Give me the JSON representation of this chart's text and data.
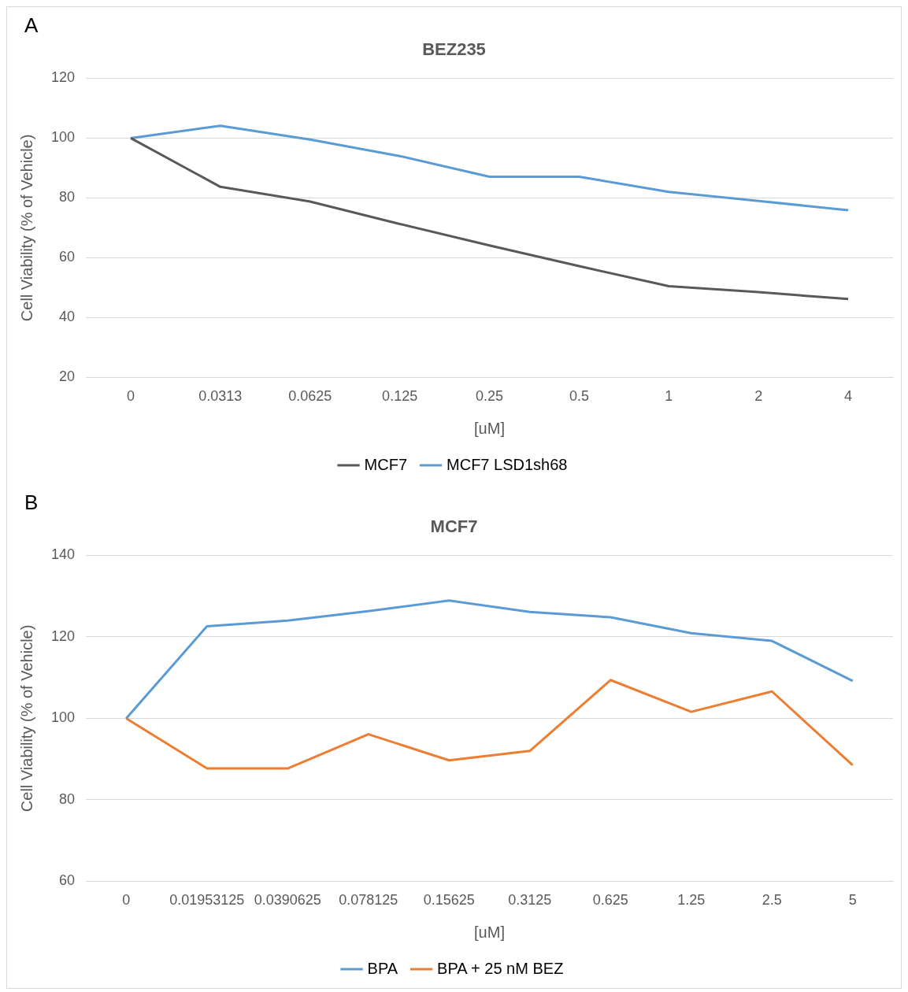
{
  "chart_data": [
    {
      "type": "line",
      "title": "BEZ235",
      "xlabel": "[uM]",
      "ylabel": "Cell Viability (% of Vehicle)",
      "annotations": [
        "A"
      ],
      "categories": [
        "0",
        "0.0313",
        "0.0625",
        "0.125",
        "0.25",
        "0.5",
        "1",
        "2",
        "4"
      ],
      "series": [
        {
          "name": "MCF7",
          "color": "#595959",
          "values": [
            100,
            83.7,
            78.8,
            71.3,
            64.1,
            57.2,
            50.5,
            48.5,
            46.2
          ]
        },
        {
          "name": "MCF7 LSD1sh68",
          "color": "#5b9bd5",
          "values": [
            100,
            104.1,
            99.5,
            94,
            87.1,
            87.1,
            82,
            79,
            75.9
          ]
        }
      ],
      "ylim": [
        20,
        120
      ],
      "yticks": [
        20,
        40,
        60,
        80,
        100,
        120
      ],
      "grid": "y",
      "legend": "bottom",
      "marker": "none",
      "line_style": "solid"
    },
    {
      "type": "line",
      "title": "MCF7",
      "xlabel": "[uM]",
      "ylabel": "Cell Viability (% of Vehicle)",
      "annotations": [
        "B"
      ],
      "categories": [
        "0",
        "0.01953125",
        "0.0390625",
        "0.078125",
        "0.15625",
        "0.3125",
        "0.625",
        "1.25",
        "2.5",
        "5"
      ],
      "series": [
        {
          "name": "BPA",
          "color": "#5b9bd5",
          "values": [
            100,
            122.6,
            124,
            126.3,
            128.9,
            126.1,
            124.8,
            120.9,
            119,
            109.2
          ]
        },
        {
          "name": "BPA + 25 nM BEZ",
          "color": "#ed7d31",
          "values": [
            100,
            87.7,
            87.7,
            96.1,
            89.7,
            92,
            109.4,
            101.6,
            106.6,
            88.5
          ]
        }
      ],
      "ylim": [
        60,
        140
      ],
      "yticks": [
        60,
        80,
        100,
        120,
        140
      ],
      "grid": "y",
      "legend": "bottom",
      "marker": "none",
      "line_style": "solid"
    }
  ]
}
